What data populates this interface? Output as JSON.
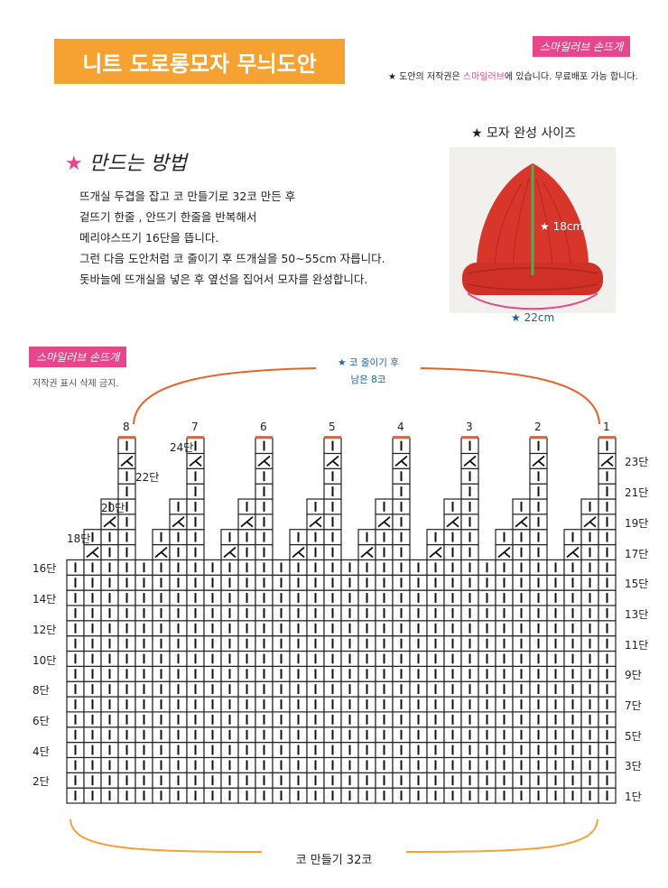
{
  "title": "니트 도로롱모자 무늬도안",
  "brand": "스마일러브 손뜨개",
  "copyright": {
    "prefix": "★ 도안의 저작권은 ",
    "brand": "스마일러브",
    "suffix": "에 있습니다. 무료배포 가능 합니다."
  },
  "method": {
    "star": "★",
    "heading": "만드는 방법",
    "steps": [
      "뜨개실 두겹을 잡고 코 만들기로 32코 만든 후",
      "겉뜨기 한줄 , 안뜨기 한줄을 반복해서",
      "메리야스뜨기 16단을 뜹니다.",
      "그런 다음 도안처럼 코 줄이기 후 뜨개실을 50~55cm 자릅니다.",
      "돗바늘에 뜨개실을 넣은 후 옆선을 집어서 모자를 완성합니다."
    ]
  },
  "hat": {
    "label": "★ 모자 완성 사이즈",
    "height": "★ 18cm",
    "width": "★ 22cm",
    "colors": {
      "hat": "#d9362b",
      "line_height": "#4caf50",
      "line_width": "#e8468b"
    }
  },
  "chart": {
    "brand": "스마일러브 손뜨개",
    "notice": "저작권 표시 삭제 금지.",
    "decrease_note_line1": "★ 코 줄이기 후",
    "decrease_note_line2": "남은 8코",
    "bottom_label": "코 만들기 32코",
    "top_numbers": [
      "8",
      "7",
      "6",
      "5",
      "4",
      "3",
      "2",
      "1"
    ],
    "left_rows": [
      "24단",
      "22단",
      "20단",
      "18단",
      "16단",
      "14단",
      "12단",
      "10단",
      "8단",
      "6단",
      "4단",
      "2단"
    ],
    "right_rows": [
      "23단",
      "21단",
      "19단",
      "17단",
      "15단",
      "13단",
      "11단",
      "9단",
      "7단",
      "5단",
      "3단",
      "1단"
    ],
    "accent": "#e8632a"
  }
}
